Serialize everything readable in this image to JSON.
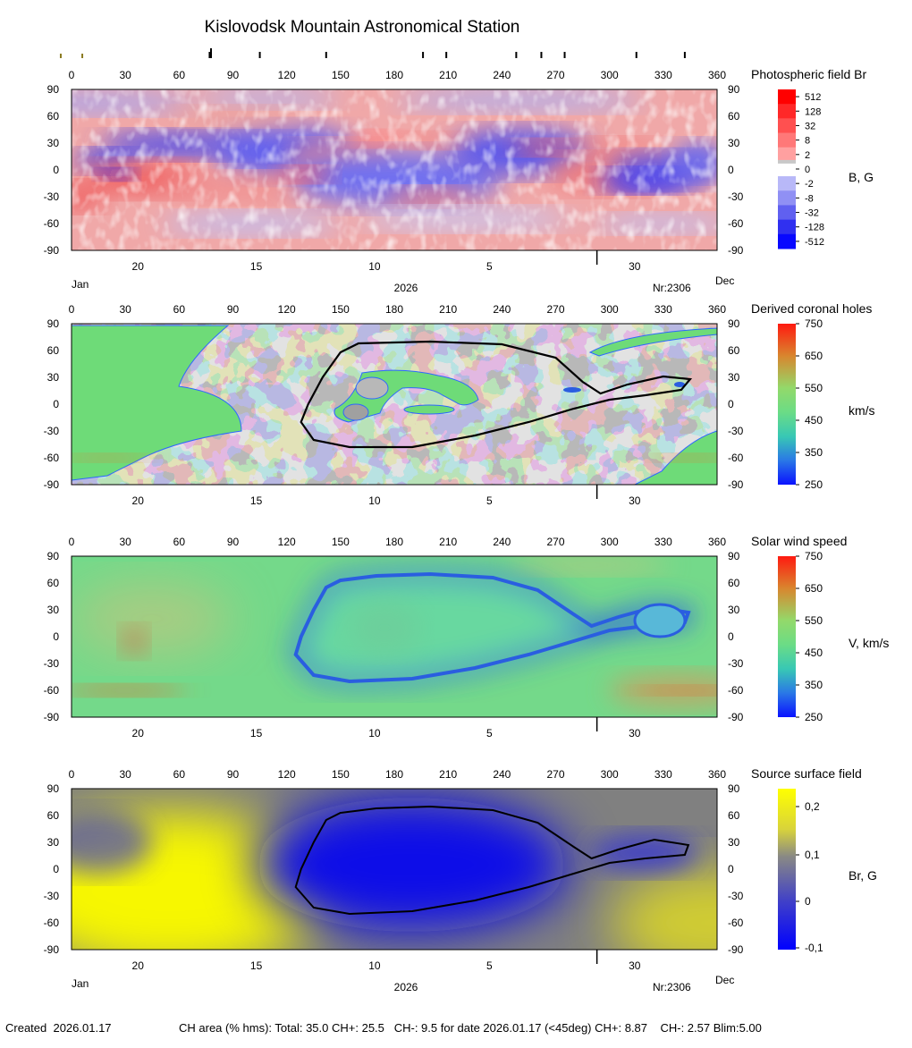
{
  "title": "Kislovodsk Mountain Astronomical Station",
  "top_markers_lon": [
    77,
    105,
    142,
    196,
    209,
    248,
    262,
    275,
    315,
    342
  ],
  "gold_markers_lon": [
    -6,
    6
  ],
  "axes": {
    "lon_ticks": [
      "0",
      "30",
      "60",
      "90",
      "120",
      "150",
      "180",
      "210",
      "240",
      "270",
      "300",
      "330",
      "360"
    ],
    "lat_ticks": [
      "90",
      "60",
      "30",
      "0",
      "-30",
      "-60",
      "-90"
    ],
    "date_ticks": [
      {
        "label": "20",
        "lon": 37
      },
      {
        "label": "15",
        "lon": 103
      },
      {
        "label": "10",
        "lon": 169
      },
      {
        "label": "5",
        "lon": 233
      },
      {
        "label": "30",
        "lon": 314
      }
    ],
    "month_left": "Jan",
    "month_right": "Dec",
    "year": "2026",
    "rotation": "Nr:2306",
    "separator_lon": 293
  },
  "panels": [
    {
      "id": "photospheric",
      "title": "Photospheric field Br",
      "unit": "B, G",
      "colorbar_labels": [
        "512",
        "128",
        "32",
        "8",
        "2",
        "0",
        "-2",
        "-8",
        "-32",
        "-128",
        "-512"
      ],
      "colors": {
        "pos": "#ff2020",
        "neg": "#2828ff",
        "zero": "#ffffff"
      }
    },
    {
      "id": "coronal",
      "title": "Derived coronal holes",
      "unit": "km/s",
      "colorbar_labels": [
        "750",
        "650",
        "550",
        "450",
        "350",
        "250"
      ],
      "colors": {
        "light": "#c2c2c2",
        "dark": "#7a7a7a",
        "green": "#6edb78",
        "orange": "#d98236"
      }
    },
    {
      "id": "wind",
      "title": "Solar wind speed",
      "unit": "V, km/s",
      "colorbar_labels": [
        "750",
        "650",
        "550",
        "450",
        "350",
        "250"
      ],
      "colors": {
        "green": "#70d983",
        "blue": "#2a5ee0",
        "orange": "#d7783a"
      }
    },
    {
      "id": "source",
      "title": "Source surface field",
      "unit": "Br, G",
      "colorbar_labels": [
        "0,2",
        "0,1",
        "0",
        "-0,1"
      ],
      "colors": {
        "blue": "#1212e6",
        "yellow": "#f7f704",
        "gray": "#858585"
      }
    }
  ],
  "chart_data": [
    {
      "type": "heatmap",
      "title": "Photospheric field Br",
      "colorbar_label": "B, G",
      "colorbar_ticks": [
        "512",
        "128",
        "32",
        "8",
        "2",
        "0",
        "-2",
        "-8",
        "-32",
        "-128",
        "-512"
      ],
      "xlim": [
        0,
        360
      ],
      "ylim": [
        -90,
        90
      ],
      "xlabel": "2026",
      "legend": "right"
    },
    {
      "type": "heatmap",
      "title": "Derived coronal holes",
      "colorbar_label": "km/s",
      "colorbar_ticks": [
        "750",
        "650",
        "550",
        "450",
        "350",
        "250"
      ],
      "xlim": [
        0,
        360
      ],
      "ylim": [
        -90,
        90
      ],
      "legend": "right",
      "neutral_line": [
        [
          160,
          68
        ],
        [
          200,
          70
        ],
        [
          240,
          67
        ],
        [
          270,
          52
        ],
        [
          285,
          25
        ],
        [
          295,
          12
        ],
        [
          310,
          22
        ],
        [
          330,
          31
        ],
        [
          345,
          28
        ],
        [
          340,
          16
        ],
        [
          320,
          10
        ],
        [
          300,
          5
        ],
        [
          280,
          -5
        ],
        [
          255,
          -20
        ],
        [
          225,
          -35
        ],
        [
          190,
          -48
        ],
        [
          155,
          -48
        ],
        [
          135,
          -40
        ],
        [
          128,
          -20
        ],
        [
          132,
          0
        ],
        [
          140,
          30
        ],
        [
          150,
          58
        ],
        [
          160,
          68
        ]
      ]
    },
    {
      "type": "heatmap",
      "title": "Solar wind speed",
      "colorbar_label": "V, km/s",
      "colorbar_ticks": [
        "750",
        "650",
        "550",
        "450",
        "350",
        "250"
      ],
      "xlim": [
        0,
        360
      ],
      "ylim": [
        -90,
        90
      ],
      "legend": "right"
    },
    {
      "type": "heatmap",
      "title": "Source surface field",
      "colorbar_label": "Br, G",
      "colorbar_ticks": [
        "0,2",
        "0,1",
        "0",
        "-0,1"
      ],
      "xlim": [
        0,
        360
      ],
      "ylim": [
        -90,
        90
      ],
      "legend": "right",
      "neutral_line": [
        [
          150,
          63
        ],
        [
          170,
          68
        ],
        [
          200,
          70
        ],
        [
          235,
          66
        ],
        [
          260,
          52
        ],
        [
          280,
          25
        ],
        [
          290,
          12
        ],
        [
          305,
          22
        ],
        [
          325,
          33
        ],
        [
          344,
          27
        ],
        [
          342,
          16
        ],
        [
          320,
          12
        ],
        [
          300,
          7
        ],
        [
          280,
          -5
        ],
        [
          255,
          -20
        ],
        [
          225,
          -35
        ],
        [
          190,
          -47
        ],
        [
          155,
          -50
        ],
        [
          135,
          -43
        ],
        [
          125,
          -20
        ],
        [
          128,
          0
        ],
        [
          135,
          30
        ],
        [
          142,
          55
        ],
        [
          150,
          63
        ]
      ]
    }
  ],
  "footer": {
    "created": "Created  2026.01.17",
    "ch_area": "CH area (% hms): Total: 35.0 CH+: 25.5   CH-: 9.5 for date 2026.01.17 (<45deg) CH+: 8.87    CH-: 2.57 Blim:5.00"
  }
}
